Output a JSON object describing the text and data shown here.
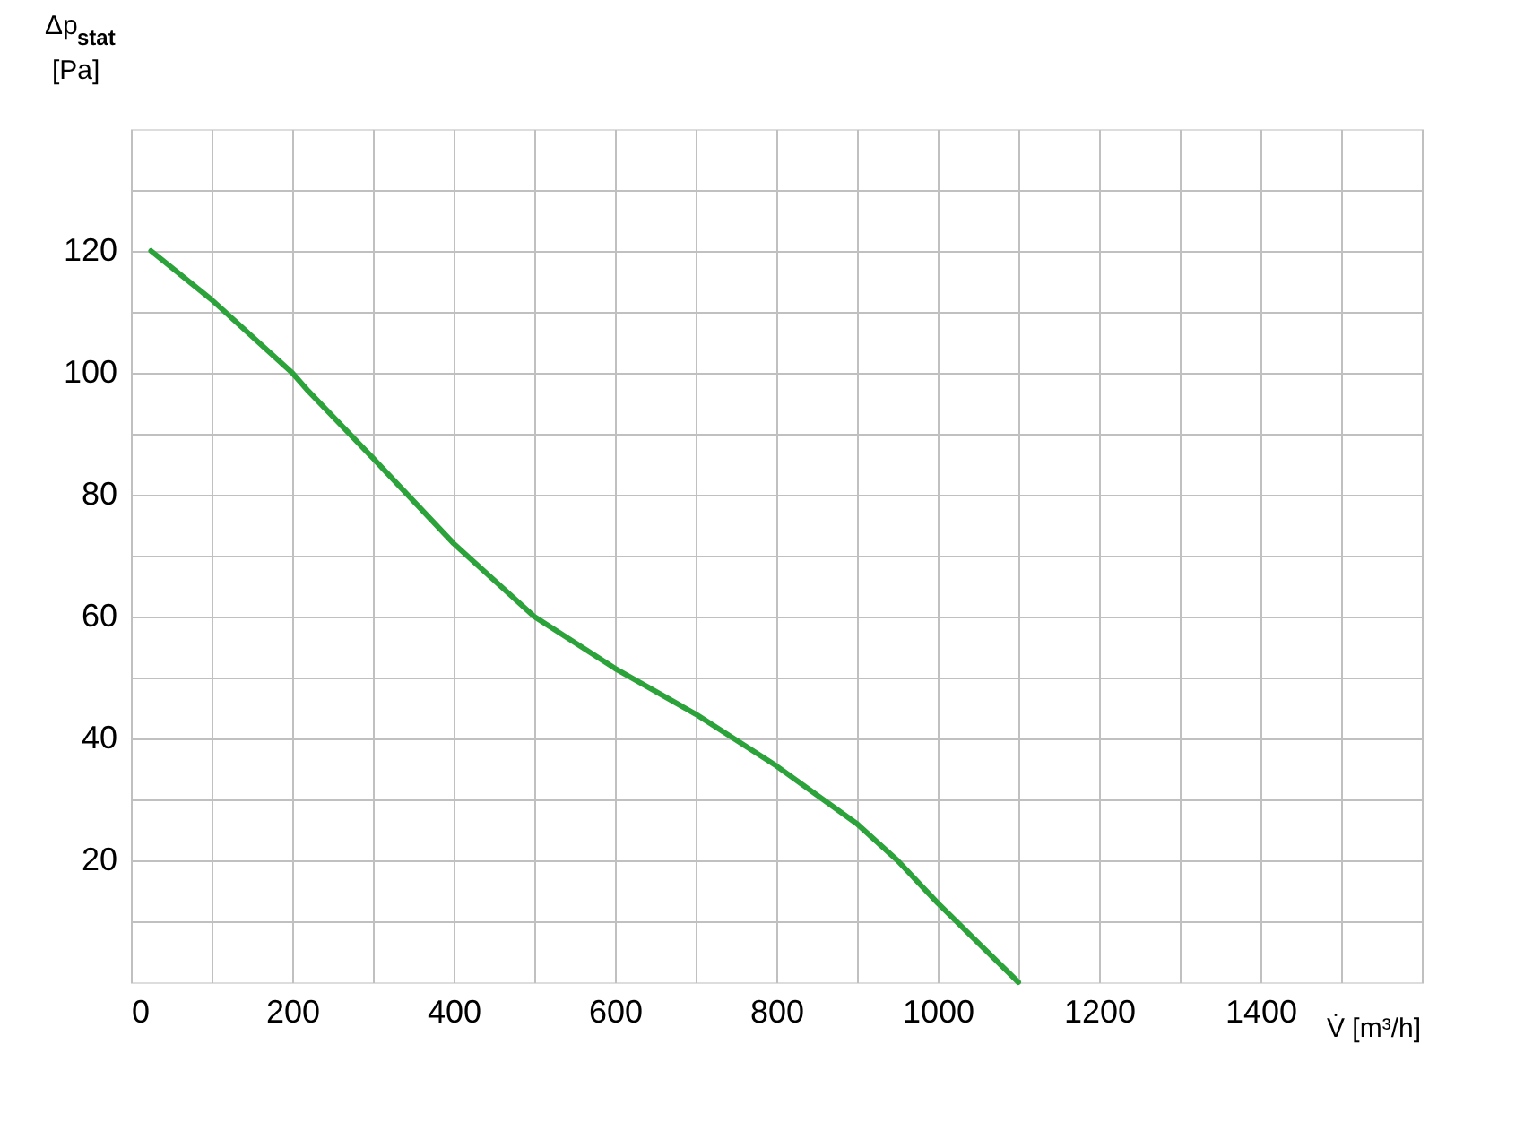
{
  "chart_data": {
    "type": "line",
    "xlabel": "V̇ [m³/h]",
    "ylabel": "Δp$_{stat}$ [Pa]",
    "x": [
      25,
      100,
      200,
      220,
      300,
      400,
      500,
      600,
      700,
      800,
      900,
      950,
      1000,
      1050,
      1100
    ],
    "series": [
      {
        "color": "#2ca23a",
        "values": [
          120,
          112,
          100,
          97,
          86,
          72,
          60,
          51.5,
          44,
          35.5,
          26,
          20,
          13,
          6.5,
          0
        ]
      }
    ],
    "xlim": [
      0,
      1600
    ],
    "ylim": [
      0,
      140
    ],
    "xticks": [
      0,
      {
        "value": 100,
        "label": null
      },
      200,
      {
        "value": 300,
        "label": null
      },
      400,
      {
        "value": 500,
        "label": null
      },
      600,
      {
        "value": 700,
        "label": null
      },
      800,
      {
        "value": 900,
        "label": null
      },
      1000,
      {
        "value": 1100,
        "label": null
      },
      1200,
      {
        "value": 1300,
        "label": null
      },
      1400,
      {
        "value": 1500,
        "label": null
      },
      {
        "value": 1600,
        "label": null
      }
    ],
    "yticks": [
      {
        "value": 10,
        "label": null
      },
      20,
      {
        "value": 30,
        "label": null
      },
      40,
      {
        "value": 50,
        "label": null
      },
      60,
      {
        "value": 70,
        "label": null
      },
      80,
      {
        "value": 90,
        "label": null
      },
      100,
      {
        "value": 110,
        "label": null
      },
      120,
      {
        "value": 130,
        "label": null
      }
    ],
    "grid": true,
    "line_style": "solid",
    "marker": "none"
  }
}
